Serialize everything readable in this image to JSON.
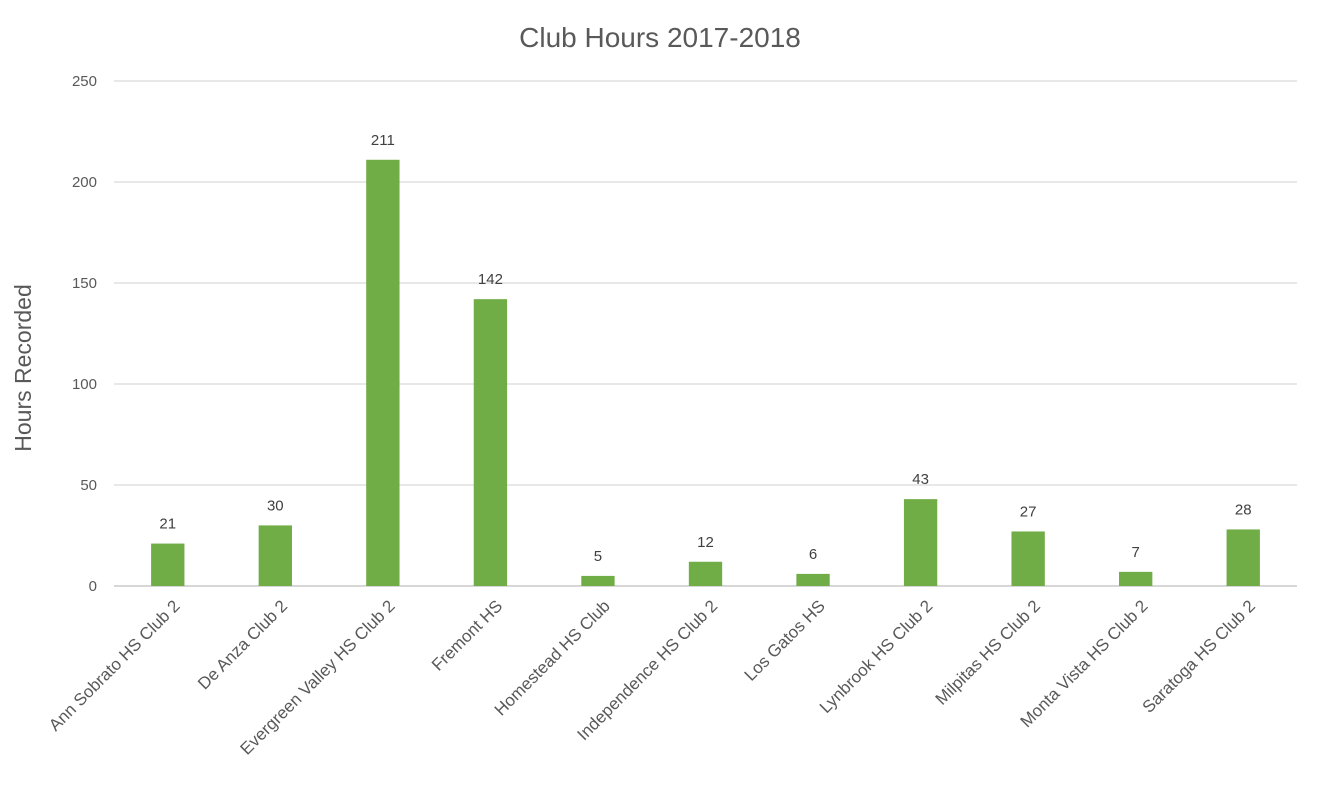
{
  "chart_data": {
    "type": "bar",
    "title": "Club Hours 2017-2018",
    "xlabel": "",
    "ylabel": "Hours Recorded",
    "ylim": [
      0,
      250
    ],
    "yticks": [
      0,
      50,
      100,
      150,
      200,
      250
    ],
    "grid": true,
    "legend": "none",
    "bar_color": "#70ad47",
    "categories": [
      "Ann Sobrato HS Club 2",
      "De Anza Club 2",
      "Evergreen Valley HS Club 2",
      "Fremont HS",
      "Homestead HS Club",
      "Independence HS Club 2",
      "Los Gatos HS",
      "Lynbrook HS Club 2",
      "Milpitas HS Club 2",
      "Monta Vista HS Club 2",
      "Saratoga HS Club 2"
    ],
    "values": [
      21,
      30,
      211,
      142,
      5,
      12,
      6,
      43,
      27,
      7,
      28
    ]
  }
}
